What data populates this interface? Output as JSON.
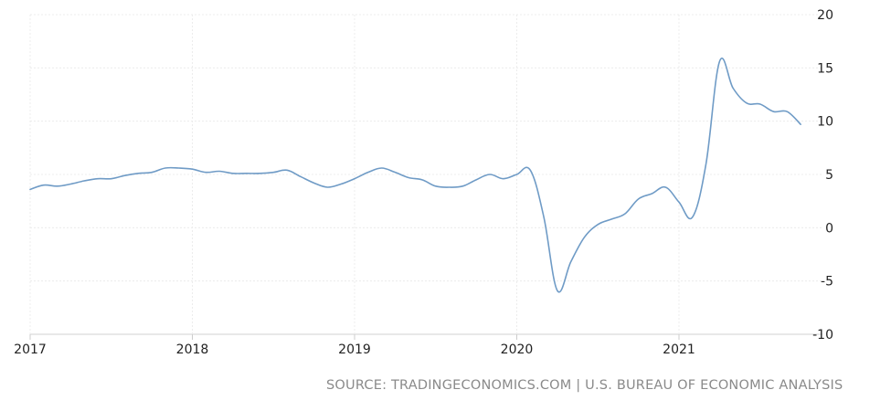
{
  "chart_data": {
    "type": "line",
    "title": "",
    "xlabel": "",
    "ylabel": "",
    "x_ticks": [
      "2017",
      "2018",
      "2019",
      "2020",
      "2021"
    ],
    "y_ticks": [
      20,
      15,
      10,
      5,
      0,
      -5,
      -10
    ],
    "ylim": [
      -10,
      20
    ],
    "xlim": [
      "2017-01",
      "2021-10"
    ],
    "grid": true,
    "series": [
      {
        "color": "#6f9bc6",
        "points": [
          [
            "2017-01",
            3.6
          ],
          [
            "2017-02",
            4.0
          ],
          [
            "2017-03",
            3.9
          ],
          [
            "2017-04",
            4.1
          ],
          [
            "2017-05",
            4.4
          ],
          [
            "2017-06",
            4.6
          ],
          [
            "2017-07",
            4.6
          ],
          [
            "2017-08",
            4.9
          ],
          [
            "2017-09",
            5.1
          ],
          [
            "2017-10",
            5.2
          ],
          [
            "2017-11",
            5.6
          ],
          [
            "2017-12",
            5.6
          ],
          [
            "2018-01",
            5.5
          ],
          [
            "2018-02",
            5.2
          ],
          [
            "2018-03",
            5.3
          ],
          [
            "2018-04",
            5.1
          ],
          [
            "2018-05",
            5.1
          ],
          [
            "2018-06",
            5.1
          ],
          [
            "2018-07",
            5.2
          ],
          [
            "2018-08",
            5.4
          ],
          [
            "2018-09",
            4.8
          ],
          [
            "2018-10",
            4.2
          ],
          [
            "2018-11",
            3.8
          ],
          [
            "2018-12",
            4.1
          ],
          [
            "2019-01",
            4.6
          ],
          [
            "2019-02",
            5.2
          ],
          [
            "2019-03",
            5.6
          ],
          [
            "2019-04",
            5.2
          ],
          [
            "2019-05",
            4.7
          ],
          [
            "2019-06",
            4.5
          ],
          [
            "2019-07",
            3.9
          ],
          [
            "2019-08",
            3.8
          ],
          [
            "2019-09",
            3.9
          ],
          [
            "2019-10",
            4.5
          ],
          [
            "2019-11",
            5.0
          ],
          [
            "2019-12",
            4.6
          ],
          [
            "2020-01",
            5.0
          ],
          [
            "2020-02",
            5.4
          ],
          [
            "2020-03",
            1.0
          ],
          [
            "2020-04",
            -5.9
          ],
          [
            "2020-05",
            -3.2
          ],
          [
            "2020-06",
            -0.9
          ],
          [
            "2020-07",
            0.3
          ],
          [
            "2020-08",
            0.8
          ],
          [
            "2020-09",
            1.3
          ],
          [
            "2020-10",
            2.7
          ],
          [
            "2020-11",
            3.2
          ],
          [
            "2020-12",
            3.8
          ],
          [
            "2021-01",
            2.4
          ],
          [
            "2021-02",
            1.0
          ],
          [
            "2021-03",
            6.0
          ],
          [
            "2021-04",
            15.6
          ],
          [
            "2021-05",
            13.1
          ],
          [
            "2021-06",
            11.7
          ],
          [
            "2021-07",
            11.6
          ],
          [
            "2021-08",
            10.9
          ],
          [
            "2021-09",
            10.9
          ],
          [
            "2021-10",
            9.7
          ]
        ]
      }
    ]
  },
  "source_text": "SOURCE: TRADINGECONOMICS.COM | U.S. BUREAU OF ECONOMIC ANALYSIS"
}
